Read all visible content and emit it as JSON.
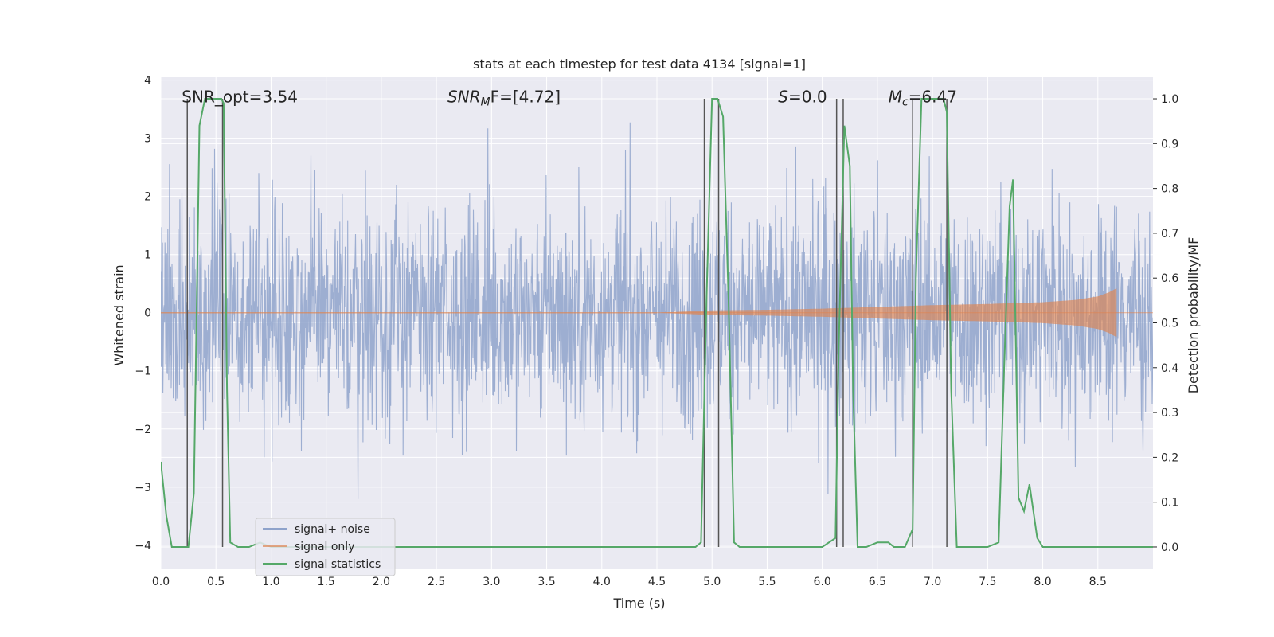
{
  "chart_data": {
    "type": "line",
    "title": "stats at each timestep for test data 4134 [signal=1]",
    "xlabel": "Time (s)",
    "ylabel": "Whitened strain",
    "ylabel_right": "Detection probability/MF",
    "xlim": [
      0.0,
      9.0
    ],
    "ylim": [
      -4.4,
      4.05
    ],
    "ylim_right": [
      -0.048,
      1.048
    ],
    "x_ticks": [
      "0.0",
      "0.5",
      "1.0",
      "1.5",
      "2.0",
      "2.5",
      "3.0",
      "3.5",
      "4.0",
      "4.5",
      "5.0",
      "5.5",
      "6.0",
      "6.5",
      "7.0",
      "7.5",
      "8.0",
      "8.5"
    ],
    "y_ticks": [
      "4",
      "3",
      "2",
      "1",
      "0",
      "−1",
      "−2",
      "−3",
      "−4"
    ],
    "y_ticks_right": [
      "1.0",
      "0.9",
      "0.8",
      "0.7",
      "0.6",
      "0.5",
      "0.4",
      "0.3",
      "0.2",
      "0.1",
      "0.0"
    ],
    "annotations": [
      {
        "text": "SNR_opt=3.54",
        "x": 0.19,
        "y": 3.62
      },
      {
        "text": "SNR",
        "sub": "M",
        "rest": "F=[4.72]",
        "x": 2.6,
        "y": 3.62
      },
      {
        "text": "S",
        "rest": "=0.0",
        "x": 5.6,
        "y": 3.62
      },
      {
        "text": "M",
        "sub": "c",
        "rest": "=6.47",
        "x": 6.6,
        "y": 3.62
      }
    ],
    "vlines": [
      0.24,
      0.56,
      4.93,
      5.06,
      6.13,
      6.19,
      6.82,
      7.13
    ],
    "series": [
      {
        "name": "signal+ noise",
        "color": "#8fa3cb",
        "envelope_x": [
          0.0,
          0.25,
          0.5,
          0.75,
          1.0,
          1.5,
          2.0,
          2.5,
          3.0,
          3.5,
          4.0,
          4.5,
          5.0,
          5.5,
          6.0,
          6.5,
          7.0,
          7.5,
          8.0,
          8.5,
          9.0
        ],
        "envelope_y": [
          1.4,
          1.3,
          1.4,
          1.3,
          1.4,
          1.3,
          1.4,
          1.3,
          1.4,
          1.3,
          1.4,
          1.3,
          1.4,
          1.3,
          1.4,
          1.3,
          1.4,
          1.3,
          1.4,
          1.3,
          1.4
        ]
      },
      {
        "name": "signal only",
        "color": "#dd8452",
        "x": [
          4.5,
          5.0,
          5.5,
          6.0,
          6.5,
          7.0,
          7.5,
          8.0,
          8.3,
          8.5,
          8.6,
          8.67
        ],
        "amplitude": [
          0.0,
          0.04,
          0.05,
          0.07,
          0.1,
          0.13,
          0.15,
          0.18,
          0.22,
          0.28,
          0.35,
          0.42
        ]
      },
      {
        "name": "signal statistics",
        "color": "#55a868",
        "axis": "right",
        "x": [
          0.0,
          0.05,
          0.1,
          0.25,
          0.3,
          0.35,
          0.4,
          0.45,
          0.5,
          0.55,
          0.57,
          0.6,
          0.63,
          0.7,
          0.8,
          0.9,
          1.0,
          4.8,
          4.85,
          4.9,
          4.95,
          5.0,
          5.05,
          5.1,
          5.15,
          5.2,
          5.25,
          5.6,
          5.65,
          5.7,
          6.0,
          6.12,
          6.15,
          6.2,
          6.25,
          6.28,
          6.32,
          6.4,
          6.5,
          6.55,
          6.6,
          6.65,
          6.75,
          6.82,
          6.85,
          6.9,
          6.95,
          7.0,
          7.05,
          7.1,
          7.13,
          7.17,
          7.22,
          7.28,
          7.5,
          7.6,
          7.65,
          7.7,
          7.73,
          7.78,
          7.83,
          7.88,
          7.95,
          8.0,
          9.0
        ],
        "y": [
          0.19,
          0.07,
          0.0,
          0.0,
          0.12,
          0.94,
          1.0,
          1.0,
          1.0,
          1.0,
          0.99,
          0.35,
          0.01,
          0.0,
          0.0,
          0.01,
          0.0,
          0.0,
          0.0,
          0.01,
          0.55,
          1.0,
          1.0,
          0.96,
          0.55,
          0.01,
          0.0,
          0.0,
          0.0,
          0.0,
          0.0,
          0.02,
          0.45,
          0.94,
          0.85,
          0.35,
          0.0,
          0.0,
          0.01,
          0.01,
          0.01,
          0.0,
          0.0,
          0.04,
          0.6,
          1.0,
          1.0,
          1.0,
          1.0,
          1.0,
          0.97,
          0.35,
          0.0,
          0.0,
          0.0,
          0.01,
          0.4,
          0.76,
          0.82,
          0.11,
          0.08,
          0.14,
          0.02,
          0.0,
          0.0
        ]
      }
    ],
    "legend": {
      "placement": "lower-left"
    }
  }
}
